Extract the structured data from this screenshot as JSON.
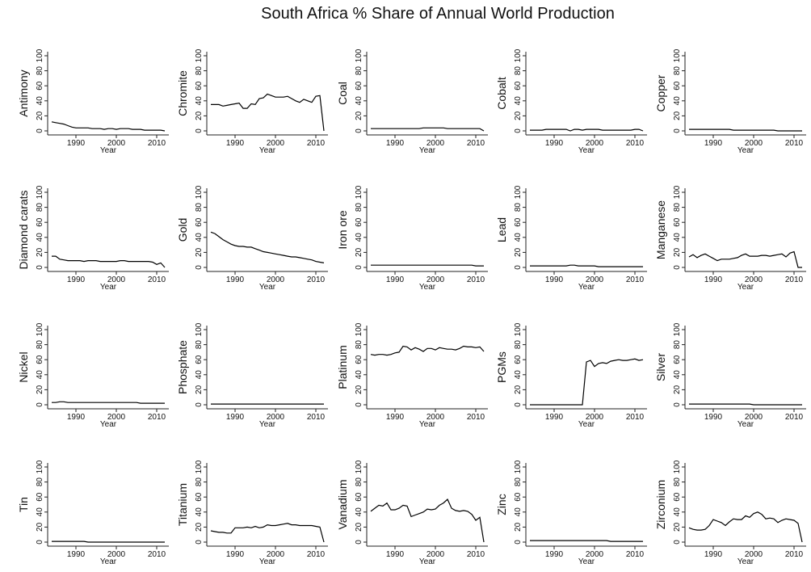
{
  "title": "South Africa % Share of Annual World Production",
  "chart_data": {
    "type": "line",
    "title": "South Africa % Share of Annual World Production",
    "xlabel": "Year",
    "x": [
      1984,
      1985,
      1986,
      1987,
      1988,
      1989,
      1990,
      1991,
      1992,
      1993,
      1994,
      1995,
      1996,
      1997,
      1998,
      1999,
      2000,
      2001,
      2002,
      2003,
      2004,
      2005,
      2006,
      2007,
      2008,
      2009,
      2010,
      2011,
      2012
    ],
    "xlim": [
      1984,
      2012
    ],
    "ylim": [
      0,
      100
    ],
    "x_ticks": [
      1990,
      2000,
      2010
    ],
    "y_ticks": [
      0,
      20,
      40,
      60,
      80,
      100
    ],
    "grid": false,
    "panels": [
      {
        "ylabel": "Antimony",
        "values": [
          12,
          11,
          10,
          9,
          7,
          5,
          4,
          4,
          4,
          4,
          3,
          3,
          3,
          2,
          3,
          3,
          2,
          3,
          3,
          3,
          2,
          2,
          2,
          1,
          1,
          1,
          1,
          1,
          0
        ]
      },
      {
        "ylabel": "Chromite",
        "values": [
          35,
          35,
          35,
          33,
          34,
          35,
          36,
          37,
          30,
          30,
          36,
          35,
          43,
          44,
          49,
          47,
          45,
          45,
          45,
          46,
          43,
          40,
          38,
          42,
          40,
          38,
          46,
          47,
          0
        ]
      },
      {
        "ylabel": "Coal",
        "values": [
          3,
          3,
          3,
          3,
          3,
          3,
          3,
          3,
          3,
          3,
          3,
          3,
          3,
          4,
          4,
          4,
          4,
          4,
          4,
          3,
          3,
          3,
          3,
          3,
          3,
          3,
          3,
          3,
          0
        ]
      },
      {
        "ylabel": "Cobalt",
        "values": [
          1,
          1,
          1,
          1,
          2,
          2,
          2,
          2,
          2,
          2,
          0,
          2,
          2,
          1,
          2,
          2,
          2,
          2,
          1,
          1,
          1,
          1,
          1,
          1,
          1,
          1,
          2,
          2,
          0
        ]
      },
      {
        "ylabel": "Copper",
        "values": [
          2,
          2,
          2,
          2,
          2,
          2,
          2,
          2,
          2,
          2,
          2,
          1,
          1,
          1,
          1,
          1,
          1,
          1,
          1,
          1,
          1,
          1,
          0,
          0,
          0,
          0,
          0,
          0,
          0
        ]
      },
      {
        "ylabel": "Diamond carats",
        "values": [
          15,
          15,
          11,
          10,
          9,
          9,
          9,
          9,
          8,
          9,
          9,
          9,
          8,
          8,
          8,
          8,
          8,
          9,
          9,
          8,
          8,
          8,
          8,
          8,
          8,
          7,
          4,
          6,
          0
        ]
      },
      {
        "ylabel": "Gold",
        "values": [
          47,
          45,
          41,
          37,
          34,
          31,
          29,
          28,
          28,
          27,
          27,
          25,
          23,
          21,
          20,
          19,
          18,
          17,
          16,
          15,
          14,
          14,
          13,
          12,
          11,
          10,
          8,
          7,
          6
        ]
      },
      {
        "ylabel": "Iron ore",
        "values": [
          3,
          3,
          3,
          3,
          3,
          3,
          3,
          3,
          3,
          3,
          3,
          3,
          3,
          3,
          3,
          3,
          3,
          3,
          3,
          3,
          3,
          3,
          3,
          3,
          3,
          3,
          2,
          2,
          2
        ]
      },
      {
        "ylabel": "Lead",
        "values": [
          2,
          2,
          2,
          2,
          2,
          2,
          2,
          2,
          2,
          2,
          3,
          3,
          2,
          2,
          2,
          2,
          2,
          1,
          1,
          1,
          1,
          1,
          1,
          1,
          1,
          1,
          1,
          1,
          1
        ]
      },
      {
        "ylabel": "Manganese",
        "values": [
          14,
          17,
          13,
          16,
          18,
          15,
          12,
          9,
          11,
          11,
          11,
          12,
          13,
          16,
          18,
          15,
          15,
          15,
          16,
          16,
          15,
          16,
          17,
          18,
          14,
          19,
          21,
          0,
          0
        ]
      },
      {
        "ylabel": "Nickel",
        "values": [
          3,
          3,
          4,
          4,
          3,
          3,
          3,
          3,
          3,
          3,
          3,
          3,
          3,
          3,
          3,
          3,
          3,
          3,
          3,
          3,
          3,
          3,
          2,
          2,
          2,
          2,
          2,
          2,
          2
        ]
      },
      {
        "ylabel": "Phosphate",
        "values": [
          1,
          1,
          1,
          1,
          1,
          1,
          1,
          1,
          1,
          1,
          1,
          1,
          1,
          1,
          1,
          1,
          1,
          1,
          1,
          1,
          1,
          1,
          1,
          1,
          1,
          1,
          1,
          1,
          1
        ]
      },
      {
        "ylabel": "Platinum",
        "values": [
          67,
          66,
          67,
          67,
          66,
          67,
          69,
          70,
          78,
          77,
          73,
          76,
          74,
          71,
          75,
          75,
          73,
          76,
          75,
          74,
          74,
          73,
          75,
          78,
          77,
          77,
          76,
          77,
          71
        ]
      },
      {
        "ylabel": "PGMs",
        "values": [
          0,
          0,
          0,
          0,
          0,
          0,
          0,
          0,
          0,
          0,
          0,
          0,
          0,
          0,
          57,
          59,
          51,
          55,
          56,
          55,
          58,
          59,
          60,
          59,
          59,
          60,
          61,
          59,
          60
        ]
      },
      {
        "ylabel": "Silver",
        "values": [
          1,
          1,
          1,
          1,
          1,
          1,
          1,
          1,
          1,
          1,
          1,
          1,
          1,
          1,
          1,
          1,
          0,
          0,
          0,
          0,
          0,
          0,
          0,
          0,
          0,
          0,
          0,
          0,
          0
        ]
      },
      {
        "ylabel": "Tin",
        "values": [
          1,
          1,
          1,
          1,
          1,
          1,
          1,
          1,
          1,
          0,
          0,
          0,
          0,
          0,
          0,
          0,
          0,
          0,
          0,
          0,
          0,
          0,
          0,
          0,
          0,
          0,
          0,
          0,
          0
        ]
      },
      {
        "ylabel": "Titanium",
        "values": [
          15,
          14,
          13,
          13,
          12,
          12,
          19,
          19,
          19,
          20,
          19,
          21,
          19,
          20,
          23,
          22,
          22,
          23,
          24,
          25,
          23,
          23,
          22,
          22,
          22,
          22,
          21,
          20,
          0
        ]
      },
      {
        "ylabel": "Vanadium",
        "values": [
          41,
          45,
          49,
          48,
          52,
          43,
          43,
          45,
          49,
          48,
          34,
          36,
          38,
          40,
          44,
          43,
          44,
          49,
          52,
          57,
          45,
          42,
          41,
          42,
          41,
          37,
          29,
          33,
          0
        ]
      },
      {
        "ylabel": "Zinc",
        "values": [
          2,
          2,
          2,
          2,
          2,
          2,
          2,
          2,
          2,
          2,
          2,
          2,
          2,
          2,
          2,
          2,
          2,
          2,
          2,
          2,
          1,
          1,
          1,
          1,
          1,
          1,
          1,
          1,
          1
        ]
      },
      {
        "ylabel": "Zirconium",
        "values": [
          19,
          17,
          16,
          16,
          17,
          22,
          30,
          28,
          26,
          22,
          27,
          31,
          30,
          30,
          35,
          33,
          38,
          40,
          37,
          31,
          32,
          31,
          26,
          29,
          31,
          30,
          29,
          25,
          0
        ]
      }
    ]
  }
}
